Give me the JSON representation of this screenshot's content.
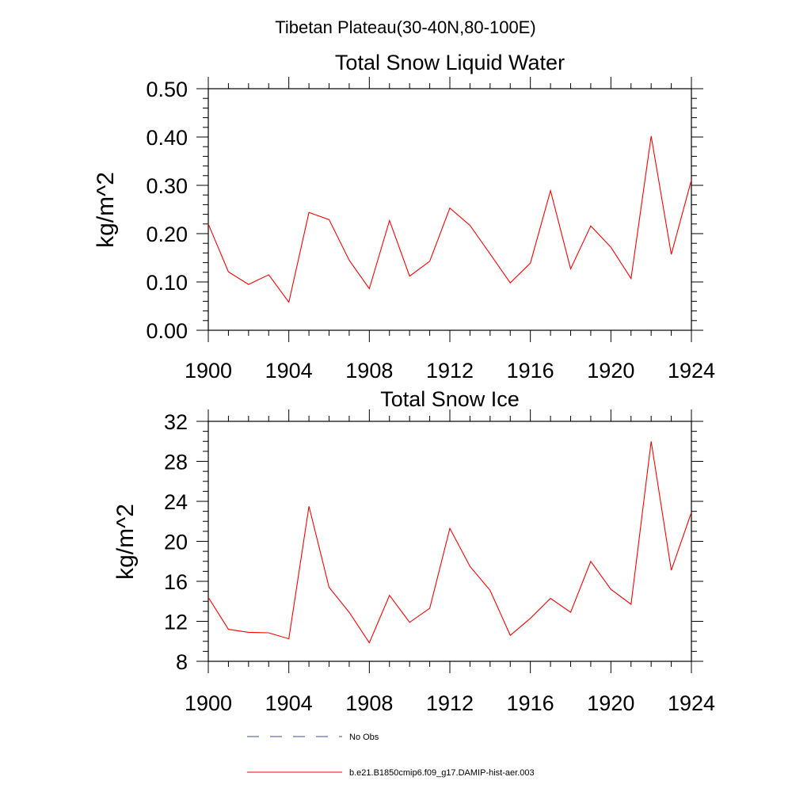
{
  "figure_title": "Tibetan Plateau(30-40N,80-100E)",
  "chart_data": [
    {
      "type": "line",
      "title": "Total Snow Liquid Water",
      "xlabel": "",
      "ylabel": "kg/m^2",
      "xlim": [
        1900,
        1924
      ],
      "ylim": [
        0.0,
        0.5
      ],
      "grid": false,
      "x_ticks": [
        "1900",
        "1904",
        "1908",
        "1912",
        "1916",
        "1920",
        "1924"
      ],
      "y_ticks": [
        "0.00",
        "0.10",
        "0.20",
        "0.30",
        "0.40",
        "0.50"
      ],
      "x": [
        1900,
        1901,
        1902,
        1903,
        1904,
        1905,
        1906,
        1907,
        1908,
        1909,
        1910,
        1911,
        1912,
        1913,
        1914,
        1915,
        1916,
        1917,
        1918,
        1919,
        1920,
        1921,
        1922,
        1923,
        1924
      ],
      "series": [
        {
          "name": "b.e21.B1850cmip6.f09_g17.DAMIP-hist-aer.003",
          "color": "#ff0000",
          "values": [
            0.22,
            0.121,
            0.095,
            0.115,
            0.058,
            0.244,
            0.229,
            0.145,
            0.086,
            0.227,
            0.112,
            0.143,
            0.253,
            0.217,
            0.158,
            0.098,
            0.139,
            0.289,
            0.127,
            0.216,
            0.172,
            0.107,
            0.402,
            0.157,
            0.311
          ]
        }
      ]
    },
    {
      "type": "line",
      "title": "Total Snow Ice",
      "xlabel": "",
      "ylabel": "kg/m^2",
      "xlim": [
        1900,
        1924
      ],
      "ylim": [
        8,
        32
      ],
      "grid": false,
      "x_ticks": [
        "1900",
        "1904",
        "1908",
        "1912",
        "1916",
        "1920",
        "1924"
      ],
      "y_ticks": [
        "8",
        "12",
        "16",
        "20",
        "24",
        "28",
        "32"
      ],
      "x": [
        1900,
        1901,
        1902,
        1903,
        1904,
        1905,
        1906,
        1907,
        1908,
        1909,
        1910,
        1911,
        1912,
        1913,
        1914,
        1915,
        1916,
        1917,
        1918,
        1919,
        1920,
        1921,
        1922,
        1923,
        1924
      ],
      "series": [
        {
          "name": "b.e21.B1850cmip6.f09_g17.DAMIP-hist-aer.003",
          "color": "#ff0000",
          "values": [
            14.4,
            11.2,
            10.9,
            10.85,
            10.25,
            23.5,
            15.4,
            12.9,
            9.85,
            14.6,
            11.9,
            13.3,
            21.3,
            17.5,
            15.1,
            10.6,
            12.3,
            14.3,
            12.9,
            18.0,
            15.2,
            13.7,
            30.0,
            17.1,
            22.9
          ]
        }
      ]
    }
  ],
  "legend": {
    "placement": "bottom",
    "items": [
      {
        "label": "No Obs",
        "color": "#3c4b8c",
        "style": "dashed"
      },
      {
        "label": "b.e21.B1850cmip6.f09_g17.DAMIP-hist-aer.003",
        "color": "#ff0000",
        "style": "solid"
      }
    ]
  }
}
